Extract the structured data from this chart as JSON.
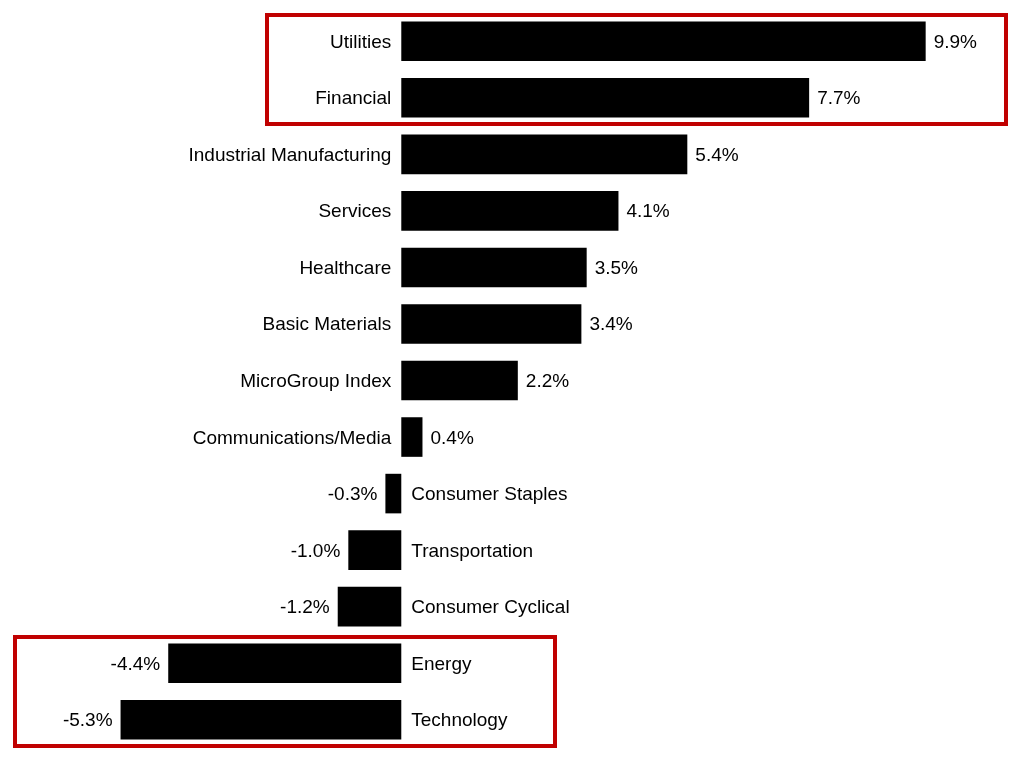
{
  "chart_data": {
    "type": "bar",
    "orientation": "horizontal",
    "categories": [
      "Utilities",
      "Financial",
      "Industrial Manufacturing",
      "Services",
      "Healthcare",
      "Basic Materials",
      "MicroGroup Index",
      "Communications/Media",
      "Consumer Staples",
      "Transportation",
      "Consumer Cyclical",
      "Energy",
      "Technology"
    ],
    "values": [
      9.9,
      7.7,
      5.4,
      4.1,
      3.5,
      3.4,
      2.2,
      0.4,
      -0.3,
      -1.0,
      -1.2,
      -4.4,
      -5.3
    ],
    "value_labels": [
      "9.9%",
      "7.7%",
      "5.4%",
      "4.1%",
      "3.5%",
      "3.4%",
      "2.2%",
      "0.4%",
      "-0.3%",
      "-1.0%",
      "-1.2%",
      "-4.4%",
      "-5.3%"
    ],
    "color": "#000000"
  }
}
